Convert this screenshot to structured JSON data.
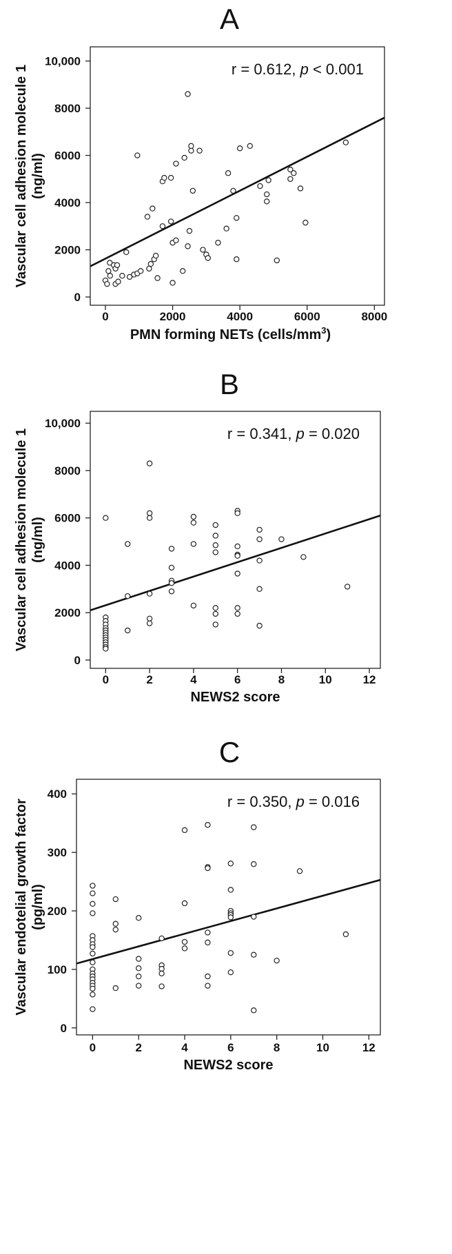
{
  "colors": {
    "axis": "#222222",
    "point_stroke": "#222222",
    "fit_line": "#111111",
    "background": "#ffffff"
  },
  "chart_data": [
    {
      "type": "scatter",
      "panel": "A",
      "xlabel": "PMN forming NETs (cells/mm",
      "xlabel_sup": "3",
      "xlabel_tail": ")",
      "ylabel": [
        "Vascular cell adhesion molecule 1",
        "(ng/ml)"
      ],
      "xlim": [
        -450,
        8300
      ],
      "ylim": [
        -350,
        10600
      ],
      "xticks": [
        0,
        2000,
        4000,
        6000,
        8000
      ],
      "xtick_labels": [
        "0",
        "2000",
        "4000",
        "6000",
        "8000"
      ],
      "yticks": [
        0,
        2000,
        4000,
        6000,
        8000,
        10000
      ],
      "ytick_labels": [
        "0",
        "2000",
        "4000",
        "6000",
        "8000",
        "10,000"
      ],
      "annotation": {
        "text": "r = 0.612, ",
        "italic": "p",
        "tail": " < 0.001"
      },
      "fit_line": [
        [
          -450,
          1300
        ],
        [
          8300,
          7600
        ]
      ],
      "points": [
        [
          0,
          700
        ],
        [
          50,
          550
        ],
        [
          90,
          1100
        ],
        [
          140,
          900
        ],
        [
          130,
          1450
        ],
        [
          250,
          1350
        ],
        [
          300,
          1200
        ],
        [
          350,
          1350
        ],
        [
          300,
          550
        ],
        [
          380,
          650
        ],
        [
          500,
          900
        ],
        [
          620,
          1900
        ],
        [
          720,
          850
        ],
        [
          850,
          950
        ],
        [
          950,
          1000
        ],
        [
          1050,
          1100
        ],
        [
          950,
          6000
        ],
        [
          1250,
          3400
        ],
        [
          1300,
          1200
        ],
        [
          1400,
          3750
        ],
        [
          1350,
          1400
        ],
        [
          1450,
          1600
        ],
        [
          1500,
          1750
        ],
        [
          1550,
          800
        ],
        [
          1700,
          3000
        ],
        [
          1700,
          4900
        ],
        [
          1750,
          5050
        ],
        [
          1950,
          5050
        ],
        [
          1950,
          3200
        ],
        [
          2000,
          2300
        ],
        [
          2000,
          600
        ],
        [
          2100,
          2400
        ],
        [
          2100,
          5650
        ],
        [
          2300,
          1100
        ],
        [
          2350,
          5900
        ],
        [
          2450,
          2150
        ],
        [
          2450,
          8600
        ],
        [
          2500,
          2800
        ],
        [
          2550,
          6200
        ],
        [
          2550,
          6400
        ],
        [
          2600,
          4500
        ],
        [
          2800,
          6200
        ],
        [
          2900,
          2000
        ],
        [
          3000,
          1800
        ],
        [
          3050,
          1650
        ],
        [
          3350,
          2300
        ],
        [
          3600,
          2900
        ],
        [
          3650,
          5250
        ],
        [
          3800,
          4500
        ],
        [
          3900,
          3350
        ],
        [
          3900,
          1600
        ],
        [
          4000,
          6300
        ],
        [
          4300,
          6400
        ],
        [
          4600,
          4700
        ],
        [
          4800,
          4350
        ],
        [
          4800,
          4050
        ],
        [
          4850,
          4950
        ],
        [
          5100,
          1550
        ],
        [
          5500,
          5000
        ],
        [
          5500,
          5400
        ],
        [
          5600,
          5250
        ],
        [
          5800,
          4600
        ],
        [
          5950,
          3150
        ],
        [
          7150,
          6550
        ]
      ]
    },
    {
      "type": "scatter",
      "panel": "B",
      "xlabel": "NEWS2 score",
      "ylabel": [
        "Vascular cell adhesion molecule 1",
        "(ng/ml)"
      ],
      "xlim": [
        -0.7,
        12.5
      ],
      "ylim": [
        -350,
        10500
      ],
      "xticks": [
        0,
        2,
        4,
        6,
        8,
        10,
        12
      ],
      "xtick_labels": [
        "0",
        "2",
        "4",
        "6",
        "8",
        "10",
        "12"
      ],
      "yticks": [
        0,
        2000,
        4000,
        6000,
        8000,
        10000
      ],
      "ytick_labels": [
        "0",
        "2000",
        "4000",
        "6000",
        "8000",
        "10,000"
      ],
      "annotation": {
        "text": "r = 0.341, ",
        "italic": "p",
        "tail": " = 0.020"
      },
      "fit_line": [
        [
          -0.7,
          2100
        ],
        [
          12.5,
          6100
        ]
      ],
      "points": [
        [
          0,
          6000
        ],
        [
          0,
          1800
        ],
        [
          0,
          1650
        ],
        [
          0,
          1500
        ],
        [
          0,
          1350
        ],
        [
          0,
          1250
        ],
        [
          0,
          1150
        ],
        [
          0,
          1050
        ],
        [
          0,
          950
        ],
        [
          0,
          850
        ],
        [
          0,
          750
        ],
        [
          0,
          650
        ],
        [
          0,
          550
        ],
        [
          0,
          480
        ],
        [
          1,
          4900
        ],
        [
          1,
          2700
        ],
        [
          1,
          1250
        ],
        [
          2,
          8300
        ],
        [
          2,
          6200
        ],
        [
          2,
          6000
        ],
        [
          2,
          2800
        ],
        [
          2,
          1750
        ],
        [
          2,
          1550
        ],
        [
          3,
          4700
        ],
        [
          3,
          3900
        ],
        [
          3,
          3350
        ],
        [
          3,
          3250
        ],
        [
          3,
          2900
        ],
        [
          4,
          6050
        ],
        [
          4,
          5800
        ],
        [
          4,
          4900
        ],
        [
          4,
          2300
        ],
        [
          5,
          5700
        ],
        [
          5,
          5250
        ],
        [
          5,
          4850
        ],
        [
          5,
          4550
        ],
        [
          5,
          2200
        ],
        [
          5,
          1950
        ],
        [
          5,
          1500
        ],
        [
          6,
          6300
        ],
        [
          6,
          6200
        ],
        [
          6,
          4800
        ],
        [
          6,
          4450
        ],
        [
          6,
          4400
        ],
        [
          6,
          3650
        ],
        [
          6,
          2200
        ],
        [
          6,
          1950
        ],
        [
          7,
          5500
        ],
        [
          7,
          5100
        ],
        [
          7,
          4200
        ],
        [
          7,
          3000
        ],
        [
          7,
          1450
        ],
        [
          8,
          5100
        ],
        [
          9,
          4350
        ],
        [
          11,
          3100
        ]
      ]
    },
    {
      "type": "scatter",
      "panel": "C",
      "xlabel": "NEWS2 score",
      "ylabel": [
        "Vascular endotelial growth factor",
        "(pg/ml)"
      ],
      "xlim": [
        -0.7,
        12.5
      ],
      "ylim": [
        -12,
        425
      ],
      "xticks": [
        0,
        2,
        4,
        6,
        8,
        10,
        12
      ],
      "xtick_labels": [
        "0",
        "2",
        "4",
        "6",
        "8",
        "10",
        "12"
      ],
      "yticks": [
        0,
        100,
        200,
        300,
        400
      ],
      "ytick_labels": [
        "0",
        "100",
        "200",
        "300",
        "400"
      ],
      "annotation": {
        "text": "r = 0.350, ",
        "italic": "p",
        "tail": " = 0.016"
      },
      "fit_line": [
        [
          -0.7,
          110
        ],
        [
          12.5,
          253
        ]
      ],
      "points": [
        [
          0,
          243
        ],
        [
          0,
          230
        ],
        [
          0,
          212
        ],
        [
          0,
          196
        ],
        [
          0,
          157
        ],
        [
          0,
          150
        ],
        [
          0,
          143
        ],
        [
          0,
          138
        ],
        [
          0,
          127
        ],
        [
          0,
          112
        ],
        [
          0,
          100
        ],
        [
          0,
          93
        ],
        [
          0,
          88
        ],
        [
          0,
          83
        ],
        [
          0,
          77
        ],
        [
          0,
          72
        ],
        [
          0,
          67
        ],
        [
          0,
          57
        ],
        [
          0,
          32
        ],
        [
          1,
          220
        ],
        [
          1,
          178
        ],
        [
          1,
          168
        ],
        [
          1,
          68
        ],
        [
          2,
          188
        ],
        [
          2,
          118
        ],
        [
          2,
          102
        ],
        [
          2,
          88
        ],
        [
          2,
          72
        ],
        [
          3,
          153
        ],
        [
          3,
          107
        ],
        [
          3,
          101
        ],
        [
          3,
          93
        ],
        [
          3,
          71
        ],
        [
          4,
          338
        ],
        [
          4,
          213
        ],
        [
          4,
          147
        ],
        [
          4,
          136
        ],
        [
          5,
          347
        ],
        [
          5,
          275
        ],
        [
          5,
          273
        ],
        [
          5,
          163
        ],
        [
          5,
          146
        ],
        [
          5,
          88
        ],
        [
          5,
          72
        ],
        [
          6,
          281
        ],
        [
          6,
          236
        ],
        [
          6,
          200
        ],
        [
          6,
          196
        ],
        [
          6,
          193
        ],
        [
          6,
          189
        ],
        [
          6,
          128
        ],
        [
          6,
          95
        ],
        [
          7,
          343
        ],
        [
          7,
          280
        ],
        [
          7,
          190
        ],
        [
          7,
          125
        ],
        [
          7,
          30
        ],
        [
          8,
          115
        ],
        [
          9,
          268
        ],
        [
          11,
          160
        ]
      ]
    }
  ]
}
